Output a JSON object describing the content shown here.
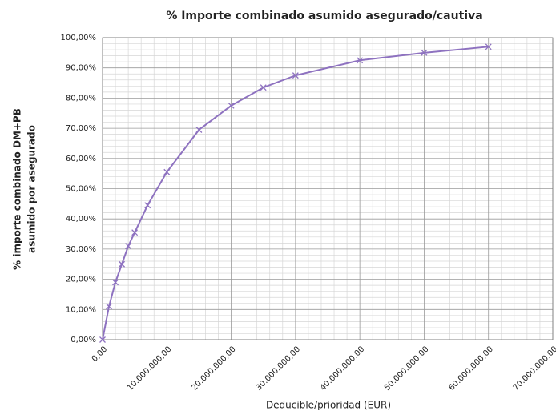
{
  "chart_data": {
    "type": "line",
    "title": "% Importe combinado asumido asegurado/cautiva",
    "xlabel": "Deducible/prioridad (EUR)",
    "ylabel": [
      "% importe combinado DM+PB",
      "asumido por asegurado"
    ],
    "x": [
      0,
      1000000,
      2000000,
      3000000,
      4000000,
      5000000,
      7000000,
      10000000,
      15000000,
      20000000,
      25000000,
      30000000,
      40000000,
      50000000,
      60000000
    ],
    "series": [
      {
        "name": "% Importe combinado asumido asegurado/cautiva",
        "color": "#8e72c0",
        "values": [
          0,
          11,
          19,
          25,
          31,
          35.5,
          44.5,
          55.5,
          69.5,
          77.5,
          83.5,
          87.5,
          92.5,
          95,
          97
        ]
      }
    ],
    "xlim": [
      0,
      70000000
    ],
    "xticks": [
      {
        "value": 0,
        "label": "0,00"
      },
      {
        "value": 10000000,
        "label": "10.000.000,00"
      },
      {
        "value": 20000000,
        "label": "20.000.000,00"
      },
      {
        "value": 30000000,
        "label": "30.000.000,00"
      },
      {
        "value": 40000000,
        "label": "40.000.000,00"
      },
      {
        "value": 50000000,
        "label": "50.000.000,00"
      },
      {
        "value": 60000000,
        "label": "60.000.000,00"
      },
      {
        "value": 70000000,
        "label": "70.000.000,00"
      }
    ],
    "ylim": [
      0,
      100
    ],
    "yticks": [
      {
        "value": 0,
        "label": "0,00%"
      },
      {
        "value": 10,
        "label": "10,00%"
      },
      {
        "value": 20,
        "label": "20,00%"
      },
      {
        "value": 30,
        "label": "30,00%"
      },
      {
        "value": 40,
        "label": "40,00%"
      },
      {
        "value": 50,
        "label": "50,00%"
      },
      {
        "value": 60,
        "label": "60,00%"
      },
      {
        "value": 70,
        "label": "70,00%"
      },
      {
        "value": 80,
        "label": "80,00%"
      },
      {
        "value": 90,
        "label": "90,00%"
      },
      {
        "value": 100,
        "label": "100,00%"
      }
    ],
    "grid": true,
    "markers": "x"
  }
}
